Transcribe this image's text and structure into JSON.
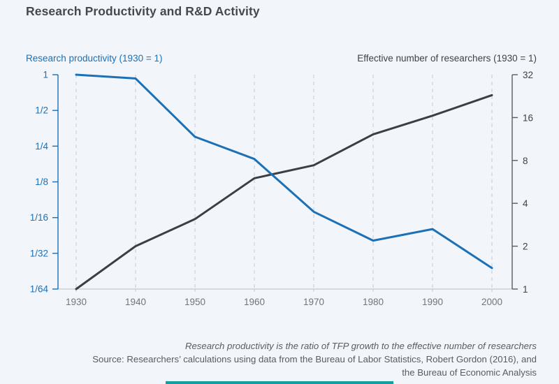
{
  "page": {
    "title": "Research Productivity and R&D Activity"
  },
  "chart": {
    "left_axis_title": "Research productivity (1930 = 1)",
    "right_axis_title": "Effective number of researchers (1930 = 1)"
  },
  "chart_data": {
    "type": "line",
    "title": "Research Productivity and R&D Activity",
    "x": [
      1930,
      1940,
      1950,
      1960,
      1970,
      1980,
      1990,
      2000
    ],
    "x_tick_labels": [
      "1930",
      "1940",
      "1950",
      "1960",
      "1970",
      "1980",
      "1990",
      "2000"
    ],
    "grid": "vertical-dashed",
    "legend": "none",
    "series": [
      {
        "name": "Research productivity (1930 = 1)",
        "axis": "left",
        "color": "#1b70b6",
        "values": [
          1,
          0.93,
          0.3,
          0.195,
          0.07,
          0.04,
          0.05,
          0.0235
        ]
      },
      {
        "name": "Effective number of researchers (1930 = 1)",
        "axis": "right",
        "color": "#3b3f43",
        "values": [
          1,
          2.0,
          3.1,
          6.0,
          7.4,
          12.2,
          16.5,
          23
        ]
      }
    ],
    "left_axis": {
      "scale": "log2",
      "range": [
        1,
        0.015625
      ],
      "ticks": [
        1,
        0.5,
        0.25,
        0.125,
        0.0625,
        0.03125,
        0.015625
      ],
      "tick_labels": [
        "1",
        "1/2",
        "1/4",
        "1/8",
        "1/16",
        "1/32",
        "1/64"
      ]
    },
    "right_axis": {
      "scale": "log2",
      "range": [
        1,
        32
      ],
      "ticks": [
        32,
        16,
        8,
        4,
        2,
        1
      ],
      "tick_labels": [
        "32",
        "16",
        "8",
        "4",
        "2",
        "1"
      ]
    }
  },
  "footer": {
    "note": "Research productivity is the ratio of TFP growth to the effective number of researchers",
    "source_line1": "Source: Researchers’ calculations using data from the Bureau of Labor Statistics, Robert Gordon (2016), and",
    "source_line2": "the Bureau of Economic Analysis"
  },
  "colors": {
    "background": "#f2f5f9",
    "productivity_blue": "#1b70b6",
    "researchers_dark": "#3b3f43",
    "accent_teal": "#0fa0a6"
  }
}
